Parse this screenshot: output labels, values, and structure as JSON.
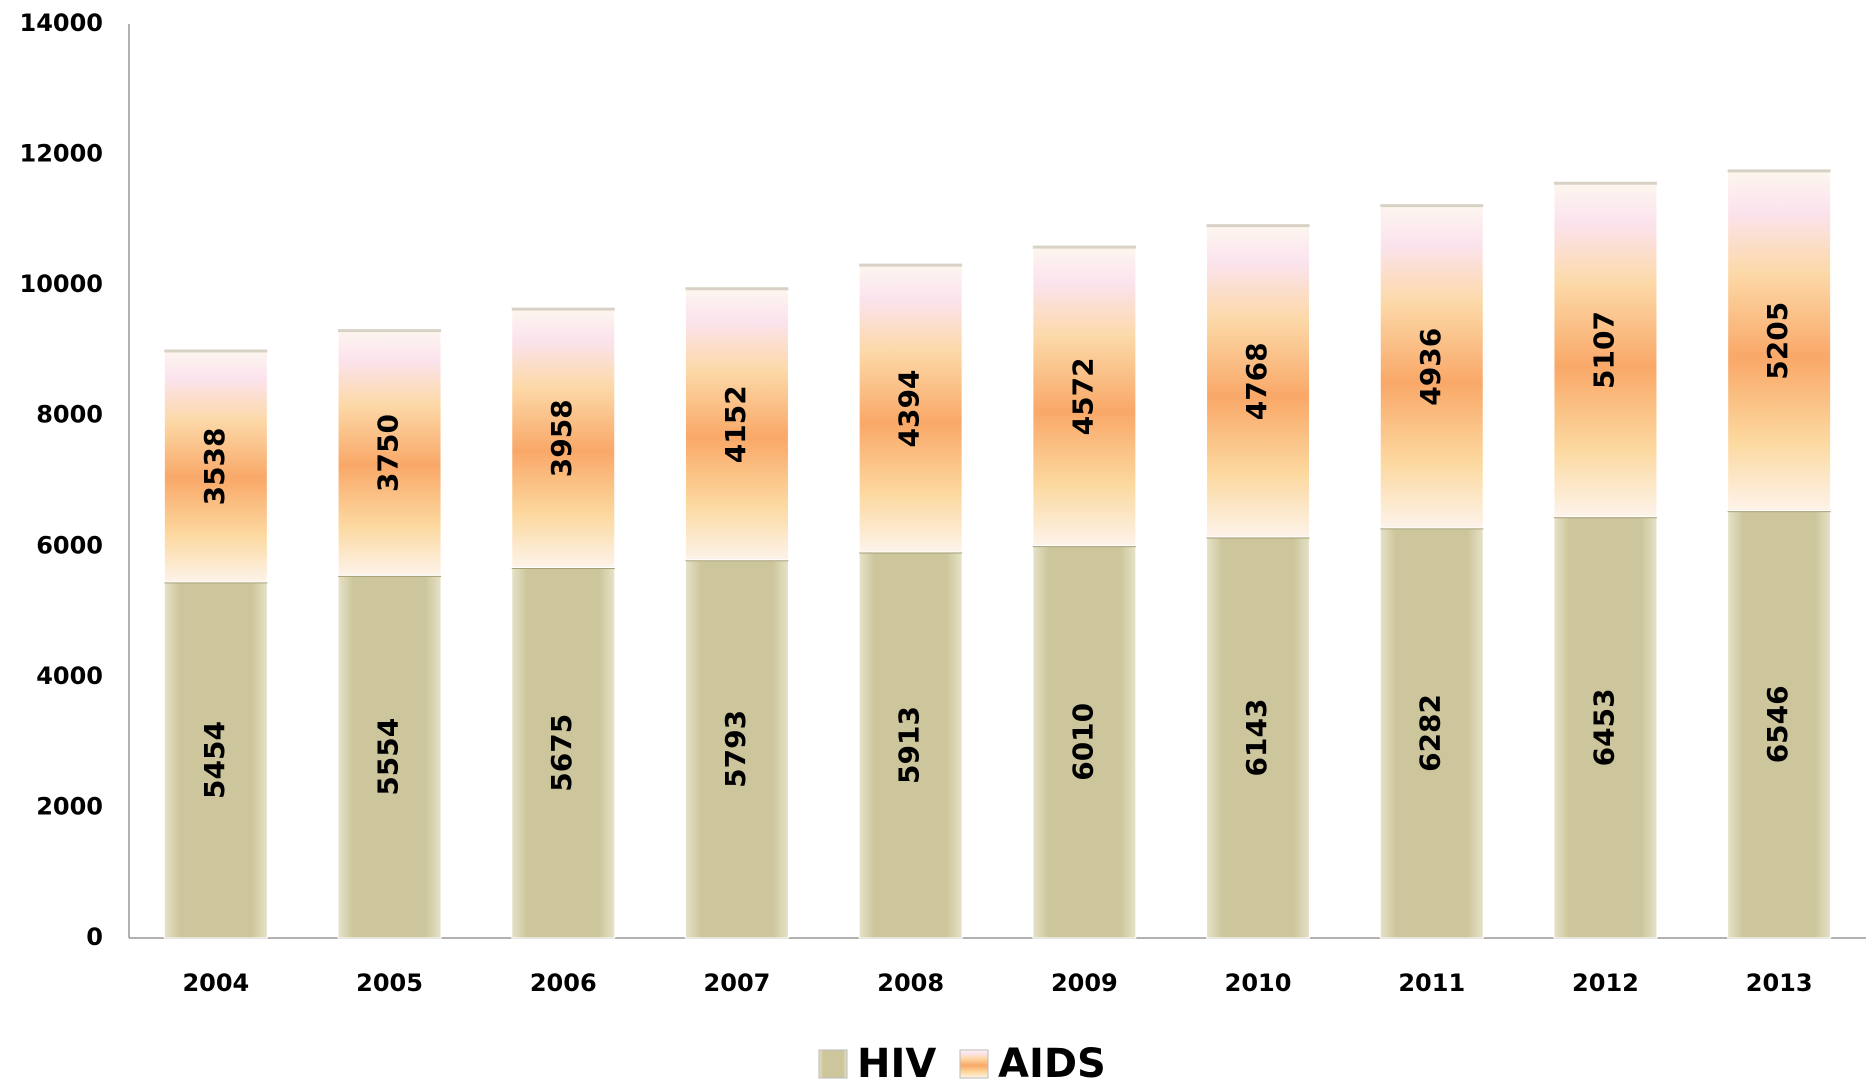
{
  "chart_data": {
    "type": "stacked_bar",
    "categories": [
      "2004",
      "2005",
      "2006",
      "2007",
      "2008",
      "2009",
      "2010",
      "2011",
      "2012",
      "2013"
    ],
    "series": [
      {
        "name": "HIV",
        "color": "#cdc69c",
        "values": [
          5454,
          5554,
          5675,
          5793,
          5913,
          6010,
          6143,
          6282,
          6453,
          6546
        ]
      },
      {
        "name": "AIDS",
        "color": "#f9a868",
        "values": [
          3538,
          3750,
          3958,
          4152,
          4394,
          4572,
          4768,
          4936,
          5107,
          5205
        ]
      }
    ],
    "ylim": [
      0,
      14000
    ],
    "yticks": [
      0,
      2000,
      4000,
      6000,
      8000,
      10000,
      12000,
      14000
    ],
    "grid": false,
    "legend": "bottom"
  }
}
